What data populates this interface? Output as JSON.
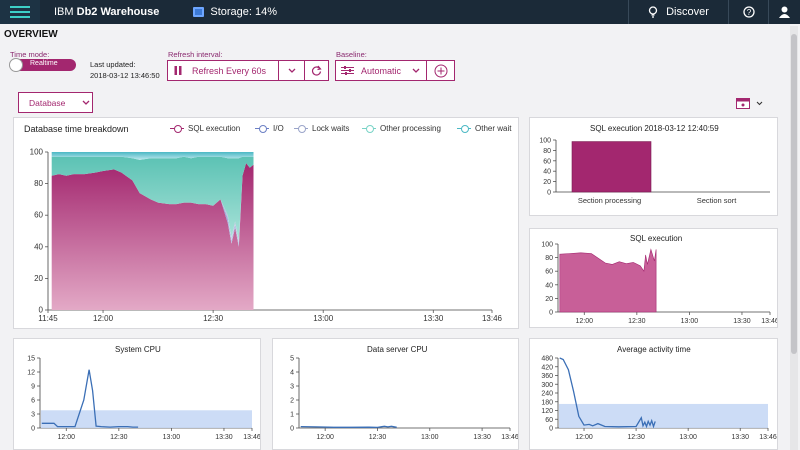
{
  "topbar": {
    "brand_prefix": "IBM",
    "brand_name": "Db2 Warehouse",
    "storage": "Storage: 14%",
    "discover": "Discover",
    "help_icon": "help-circle-icon",
    "user_icon": "user-icon"
  },
  "page_title": "OVERVIEW",
  "controls": {
    "time_mode_label": "Time mode:",
    "time_mode_value": "Realtime",
    "last_updated_label": "Last updated:",
    "last_updated_value": "2018-03-12 13:46:50",
    "refresh_label": "Refresh interval:",
    "refresh_value": "Refresh Every 60s",
    "baseline_label": "Baseline:",
    "baseline_value": "Automatic",
    "view_select": "Database"
  },
  "colors": {
    "accent": "#a3276f",
    "topbar": "#1b2a38",
    "teal": "#3dd1c8",
    "line_blue": "#3b6fb6",
    "baseline_band": "#c6d8f5"
  },
  "chart_data": [
    {
      "id": "db_time",
      "type": "area",
      "title": "Database time breakdown",
      "legend": [
        "SQL execution",
        "I/O",
        "Lock waits",
        "Other processing",
        "Other wait"
      ],
      "yticks": [
        "100",
        "80",
        "60",
        "40",
        "20",
        "0"
      ],
      "xticks": [
        "11:45",
        "12:00",
        "12:30",
        "13:00",
        "13:30",
        "13:46"
      ],
      "ylim": [
        0,
        100
      ],
      "xlim": [
        "11:45",
        "13:46"
      ],
      "x": [
        "11:46",
        "11:48",
        "11:50",
        "11:52",
        "11:55",
        "11:58",
        "12:00",
        "12:03",
        "12:05",
        "12:08",
        "12:10",
        "12:13",
        "12:15",
        "12:18",
        "12:20",
        "12:22",
        "12:24",
        "12:26",
        "12:28",
        "12:30",
        "12:32",
        "12:34",
        "12:35",
        "12:36",
        "12:37",
        "12:38",
        "12:39",
        "12:40",
        "12:41"
      ],
      "series": [
        {
          "name": "SQL execution",
          "values": [
            85,
            86,
            85,
            86,
            86,
            87,
            88,
            89,
            87,
            82,
            74,
            70,
            68,
            67,
            67,
            68,
            68,
            67,
            67,
            66,
            70,
            55,
            42,
            52,
            40,
            85,
            93,
            90,
            92
          ]
        },
        {
          "name": "I/O",
          "values": [
            0,
            0,
            0,
            0,
            0,
            0,
            0,
            0,
            0,
            0,
            0,
            0,
            0,
            0,
            0,
            0,
            0,
            0,
            0,
            0,
            0,
            3,
            2,
            2,
            2,
            0,
            0,
            0,
            0
          ]
        },
        {
          "name": "Lock waits",
          "values": [
            0,
            0,
            0,
            0,
            0,
            0,
            0,
            0,
            0,
            0,
            0,
            0,
            0,
            0,
            0,
            0,
            0,
            0,
            0,
            0,
            0,
            2,
            2,
            2,
            2,
            0,
            0,
            0,
            0
          ]
        },
        {
          "name": "Other processing",
          "values": [
            12,
            11,
            12,
            11,
            11,
            10,
            9,
            8,
            10,
            14,
            21,
            26,
            28,
            29,
            29,
            29,
            28,
            30,
            30,
            31,
            27,
            36,
            50,
            40,
            52,
            12,
            4,
            7,
            5
          ]
        },
        {
          "name": "Other wait",
          "values": [
            3,
            3,
            3,
            3,
            3,
            3,
            3,
            3,
            3,
            4,
            5,
            4,
            4,
            4,
            4,
            3,
            4,
            3,
            3,
            3,
            3,
            4,
            4,
            4,
            4,
            3,
            3,
            3,
            3
          ]
        }
      ]
    },
    {
      "id": "sql_exec_bar",
      "type": "bar",
      "title": "SQL execution 2018-03-12 12:40:59",
      "categories": [
        "Section processing",
        "Section sort"
      ],
      "values": [
        97,
        0
      ],
      "yticks": [
        "100",
        "80",
        "60",
        "40",
        "20",
        "0"
      ],
      "ylim": [
        0,
        100
      ]
    },
    {
      "id": "sql_exec_area",
      "type": "area",
      "title": "SQL execution",
      "yticks": [
        "100",
        "80",
        "60",
        "40",
        "20",
        "0"
      ],
      "xticks": [
        "12:00",
        "12:30",
        "13:00",
        "13:30",
        "13:46"
      ],
      "ylim": [
        0,
        100
      ],
      "xlim": [
        "11:45",
        "13:46"
      ],
      "x": [
        "11:46",
        "11:52",
        "11:58",
        "12:04",
        "12:08",
        "12:12",
        "12:16",
        "12:20",
        "12:24",
        "12:28",
        "12:32",
        "12:34",
        "12:35",
        "12:36",
        "12:38",
        "12:40",
        "12:41"
      ],
      "values": [
        85,
        86,
        87,
        86,
        79,
        72,
        70,
        74,
        71,
        73,
        68,
        60,
        84,
        70,
        92,
        75,
        92
      ]
    },
    {
      "id": "system_cpu",
      "type": "line",
      "title": "System CPU",
      "yticks": [
        "15",
        "12",
        "9",
        "6",
        "3",
        "0"
      ],
      "xticks": [
        "12:00",
        "12:30",
        "13:00",
        "13:30",
        "13:46"
      ],
      "ylim": [
        0,
        15
      ],
      "xlim": [
        "11:45",
        "13:46"
      ],
      "baseline_band": [
        0,
        3.8
      ],
      "x": [
        "11:46",
        "11:53",
        "11:55",
        "12:05",
        "12:10",
        "12:13",
        "12:15",
        "12:17",
        "12:20",
        "12:25",
        "12:30",
        "12:35",
        "12:38",
        "12:41"
      ],
      "values": [
        1.0,
        1.0,
        0.3,
        0.3,
        6.0,
        12.5,
        8.0,
        0.4,
        0.3,
        0.2,
        0.3,
        0.3,
        0.2,
        0.2
      ]
    },
    {
      "id": "data_server_cpu",
      "type": "line",
      "title": "Data server CPU",
      "yticks": [
        "5",
        "4",
        "3",
        "2",
        "1",
        "0"
      ],
      "xticks": [
        "12:00",
        "12:30",
        "13:00",
        "13:30",
        "13:46"
      ],
      "ylim": [
        0,
        5
      ],
      "xlim": [
        "11:45",
        "13:46"
      ],
      "x": [
        "11:46",
        "11:55",
        "12:05",
        "12:15",
        "12:25",
        "12:30",
        "12:34",
        "12:36",
        "12:38",
        "12:41"
      ],
      "values": [
        0.1,
        0.08,
        0.05,
        0.05,
        0.06,
        0.04,
        0.12,
        0.08,
        0.12,
        0.05
      ]
    },
    {
      "id": "avg_activity",
      "type": "line",
      "title": "Average activity time",
      "yticks": [
        "480",
        "420",
        "360",
        "300",
        "240",
        "180",
        "120",
        "60",
        "0"
      ],
      "xticks": [
        "12:00",
        "12:30",
        "13:00",
        "13:30",
        "13:46"
      ],
      "ylim": [
        0,
        480
      ],
      "xlim": [
        "11:45",
        "13:46"
      ],
      "baseline_band": [
        0,
        165
      ],
      "x": [
        "11:46",
        "11:48",
        "11:51",
        "11:54",
        "11:57",
        "12:00",
        "12:03",
        "12:05",
        "12:08",
        "12:12",
        "12:20",
        "12:30",
        "12:33",
        "12:34",
        "12:35",
        "12:36",
        "12:37",
        "12:38",
        "12:39",
        "12:40",
        "12:41"
      ],
      "values": [
        480,
        470,
        400,
        250,
        80,
        20,
        25,
        15,
        30,
        10,
        8,
        10,
        70,
        15,
        40,
        10,
        45,
        20,
        50,
        10,
        45
      ]
    }
  ]
}
